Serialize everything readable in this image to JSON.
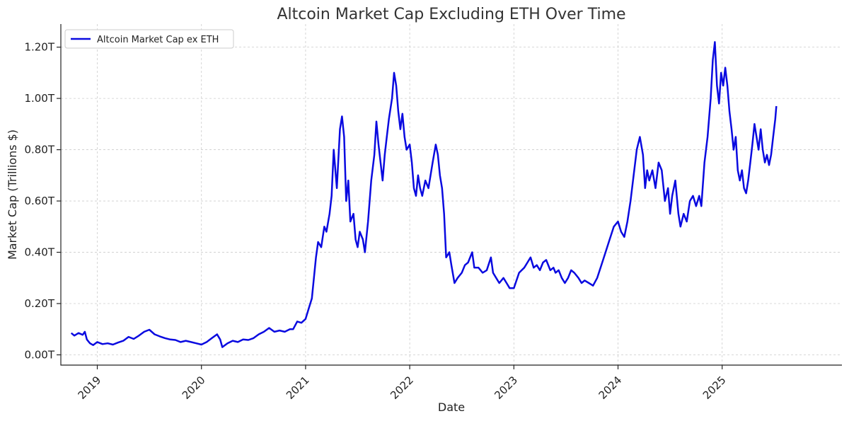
{
  "chart_data": {
    "type": "line",
    "title": "Altcoin Market Cap Excluding ETH Over Time",
    "xlabel": "Date",
    "ylabel": "Market Cap (Trillions $)",
    "xlim": [
      2018.65,
      2026.15
    ],
    "ylim": [
      -0.04,
      1.29
    ],
    "y_ticks": [
      0.0,
      0.2,
      0.4,
      0.6,
      0.8,
      1.0,
      1.2
    ],
    "y_tick_labels": [
      "0.00T",
      "0.20T",
      "0.40T",
      "0.60T",
      "0.80T",
      "1.00T",
      "1.20T"
    ],
    "x_ticks": [
      2019,
      2020,
      2021,
      2022,
      2023,
      2024,
      2025
    ],
    "x_tick_labels": [
      "2019",
      "2020",
      "2021",
      "2022",
      "2023",
      "2024",
      "2025"
    ],
    "grid": true,
    "legend_position": "top-left",
    "series": [
      {
        "name": "Altcoin Market Cap ex ETH",
        "color": "#0a0ae0",
        "points": [
          [
            2018.75,
            0.085
          ],
          [
            2018.78,
            0.075
          ],
          [
            2018.82,
            0.085
          ],
          [
            2018.86,
            0.078
          ],
          [
            2018.88,
            0.09
          ],
          [
            2018.9,
            0.06
          ],
          [
            2018.93,
            0.045
          ],
          [
            2018.96,
            0.038
          ],
          [
            2019.0,
            0.05
          ],
          [
            2019.05,
            0.042
          ],
          [
            2019.1,
            0.045
          ],
          [
            2019.15,
            0.04
          ],
          [
            2019.2,
            0.048
          ],
          [
            2019.25,
            0.055
          ],
          [
            2019.3,
            0.07
          ],
          [
            2019.35,
            0.062
          ],
          [
            2019.4,
            0.075
          ],
          [
            2019.45,
            0.09
          ],
          [
            2019.5,
            0.098
          ],
          [
            2019.55,
            0.08
          ],
          [
            2019.6,
            0.072
          ],
          [
            2019.65,
            0.065
          ],
          [
            2019.7,
            0.06
          ],
          [
            2019.75,
            0.058
          ],
          [
            2019.8,
            0.05
          ],
          [
            2019.85,
            0.055
          ],
          [
            2019.9,
            0.05
          ],
          [
            2019.95,
            0.045
          ],
          [
            2020.0,
            0.04
          ],
          [
            2020.05,
            0.05
          ],
          [
            2020.1,
            0.065
          ],
          [
            2020.15,
            0.08
          ],
          [
            2020.18,
            0.06
          ],
          [
            2020.2,
            0.03
          ],
          [
            2020.25,
            0.045
          ],
          [
            2020.3,
            0.055
          ],
          [
            2020.35,
            0.05
          ],
          [
            2020.4,
            0.06
          ],
          [
            2020.45,
            0.058
          ],
          [
            2020.5,
            0.065
          ],
          [
            2020.55,
            0.08
          ],
          [
            2020.6,
            0.09
          ],
          [
            2020.65,
            0.105
          ],
          [
            2020.7,
            0.09
          ],
          [
            2020.75,
            0.095
          ],
          [
            2020.8,
            0.09
          ],
          [
            2020.85,
            0.1
          ],
          [
            2020.88,
            0.1
          ],
          [
            2020.92,
            0.13
          ],
          [
            2020.96,
            0.125
          ],
          [
            2021.0,
            0.14
          ],
          [
            2021.03,
            0.18
          ],
          [
            2021.06,
            0.22
          ],
          [
            2021.08,
            0.3
          ],
          [
            2021.1,
            0.38
          ],
          [
            2021.12,
            0.44
          ],
          [
            2021.15,
            0.42
          ],
          [
            2021.18,
            0.5
          ],
          [
            2021.2,
            0.48
          ],
          [
            2021.23,
            0.55
          ],
          [
            2021.25,
            0.62
          ],
          [
            2021.27,
            0.8
          ],
          [
            2021.29,
            0.7
          ],
          [
            2021.3,
            0.65
          ],
          [
            2021.33,
            0.88
          ],
          [
            2021.35,
            0.93
          ],
          [
            2021.37,
            0.85
          ],
          [
            2021.39,
            0.6
          ],
          [
            2021.41,
            0.68
          ],
          [
            2021.43,
            0.52
          ],
          [
            2021.46,
            0.55
          ],
          [
            2021.48,
            0.45
          ],
          [
            2021.5,
            0.42
          ],
          [
            2021.52,
            0.48
          ],
          [
            2021.55,
            0.45
          ],
          [
            2021.57,
            0.4
          ],
          [
            2021.6,
            0.52
          ],
          [
            2021.63,
            0.68
          ],
          [
            2021.66,
            0.78
          ],
          [
            2021.68,
            0.91
          ],
          [
            2021.7,
            0.82
          ],
          [
            2021.72,
            0.75
          ],
          [
            2021.74,
            0.68
          ],
          [
            2021.76,
            0.78
          ],
          [
            2021.78,
            0.85
          ],
          [
            2021.8,
            0.92
          ],
          [
            2021.83,
            1.0
          ],
          [
            2021.85,
            1.1
          ],
          [
            2021.87,
            1.05
          ],
          [
            2021.89,
            0.95
          ],
          [
            2021.91,
            0.88
          ],
          [
            2021.93,
            0.94
          ],
          [
            2021.95,
            0.85
          ],
          [
            2021.97,
            0.8
          ],
          [
            2022.0,
            0.82
          ],
          [
            2022.02,
            0.75
          ],
          [
            2022.04,
            0.65
          ],
          [
            2022.06,
            0.62
          ],
          [
            2022.08,
            0.7
          ],
          [
            2022.1,
            0.65
          ],
          [
            2022.12,
            0.62
          ],
          [
            2022.15,
            0.68
          ],
          [
            2022.18,
            0.65
          ],
          [
            2022.22,
            0.75
          ],
          [
            2022.25,
            0.82
          ],
          [
            2022.27,
            0.78
          ],
          [
            2022.29,
            0.7
          ],
          [
            2022.31,
            0.65
          ],
          [
            2022.33,
            0.55
          ],
          [
            2022.35,
            0.38
          ],
          [
            2022.38,
            0.4
          ],
          [
            2022.4,
            0.35
          ],
          [
            2022.43,
            0.28
          ],
          [
            2022.46,
            0.3
          ],
          [
            2022.5,
            0.32
          ],
          [
            2022.53,
            0.35
          ],
          [
            2022.56,
            0.36
          ],
          [
            2022.6,
            0.4
          ],
          [
            2022.62,
            0.34
          ],
          [
            2022.66,
            0.34
          ],
          [
            2022.7,
            0.32
          ],
          [
            2022.74,
            0.33
          ],
          [
            2022.78,
            0.38
          ],
          [
            2022.8,
            0.32
          ],
          [
            2022.83,
            0.3
          ],
          [
            2022.86,
            0.28
          ],
          [
            2022.9,
            0.3
          ],
          [
            2022.93,
            0.28
          ],
          [
            2022.96,
            0.26
          ],
          [
            2023.0,
            0.26
          ],
          [
            2023.05,
            0.32
          ],
          [
            2023.1,
            0.34
          ],
          [
            2023.13,
            0.36
          ],
          [
            2023.16,
            0.38
          ],
          [
            2023.19,
            0.34
          ],
          [
            2023.22,
            0.35
          ],
          [
            2023.25,
            0.33
          ],
          [
            2023.28,
            0.36
          ],
          [
            2023.31,
            0.37
          ],
          [
            2023.35,
            0.33
          ],
          [
            2023.38,
            0.34
          ],
          [
            2023.4,
            0.32
          ],
          [
            2023.43,
            0.33
          ],
          [
            2023.46,
            0.3
          ],
          [
            2023.49,
            0.28
          ],
          [
            2023.52,
            0.3
          ],
          [
            2023.55,
            0.33
          ],
          [
            2023.58,
            0.32
          ],
          [
            2023.62,
            0.3
          ],
          [
            2023.65,
            0.28
          ],
          [
            2023.68,
            0.29
          ],
          [
            2023.72,
            0.28
          ],
          [
            2023.76,
            0.27
          ],
          [
            2023.8,
            0.3
          ],
          [
            2023.84,
            0.35
          ],
          [
            2023.88,
            0.4
          ],
          [
            2023.92,
            0.45
          ],
          [
            2023.96,
            0.5
          ],
          [
            2024.0,
            0.52
          ],
          [
            2024.03,
            0.48
          ],
          [
            2024.06,
            0.46
          ],
          [
            2024.09,
            0.52
          ],
          [
            2024.12,
            0.6
          ],
          [
            2024.15,
            0.7
          ],
          [
            2024.18,
            0.8
          ],
          [
            2024.21,
            0.85
          ],
          [
            2024.24,
            0.78
          ],
          [
            2024.26,
            0.65
          ],
          [
            2024.28,
            0.72
          ],
          [
            2024.3,
            0.68
          ],
          [
            2024.33,
            0.72
          ],
          [
            2024.36,
            0.65
          ],
          [
            2024.39,
            0.75
          ],
          [
            2024.42,
            0.72
          ],
          [
            2024.45,
            0.6
          ],
          [
            2024.48,
            0.65
          ],
          [
            2024.5,
            0.55
          ],
          [
            2024.52,
            0.62
          ],
          [
            2024.55,
            0.68
          ],
          [
            2024.58,
            0.55
          ],
          [
            2024.6,
            0.5
          ],
          [
            2024.63,
            0.55
          ],
          [
            2024.66,
            0.52
          ],
          [
            2024.69,
            0.6
          ],
          [
            2024.72,
            0.62
          ],
          [
            2024.75,
            0.58
          ],
          [
            2024.78,
            0.62
          ],
          [
            2024.8,
            0.58
          ],
          [
            2024.83,
            0.75
          ],
          [
            2024.86,
            0.85
          ],
          [
            2024.89,
            1.0
          ],
          [
            2024.91,
            1.15
          ],
          [
            2024.93,
            1.22
          ],
          [
            2024.95,
            1.05
          ],
          [
            2024.97,
            0.98
          ],
          [
            2024.99,
            1.1
          ],
          [
            2025.01,
            1.05
          ],
          [
            2025.03,
            1.12
          ],
          [
            2025.05,
            1.05
          ],
          [
            2025.07,
            0.95
          ],
          [
            2025.09,
            0.88
          ],
          [
            2025.11,
            0.8
          ],
          [
            2025.13,
            0.85
          ],
          [
            2025.15,
            0.72
          ],
          [
            2025.17,
            0.68
          ],
          [
            2025.19,
            0.72
          ],
          [
            2025.21,
            0.65
          ],
          [
            2025.23,
            0.63
          ],
          [
            2025.25,
            0.68
          ],
          [
            2025.27,
            0.75
          ],
          [
            2025.29,
            0.82
          ],
          [
            2025.31,
            0.9
          ],
          [
            2025.33,
            0.85
          ],
          [
            2025.35,
            0.8
          ],
          [
            2025.37,
            0.88
          ],
          [
            2025.39,
            0.8
          ],
          [
            2025.41,
            0.75
          ],
          [
            2025.43,
            0.78
          ],
          [
            2025.45,
            0.74
          ],
          [
            2025.47,
            0.78
          ],
          [
            2025.49,
            0.85
          ],
          [
            2025.51,
            0.92
          ],
          [
            2025.52,
            0.97
          ]
        ]
      }
    ]
  }
}
